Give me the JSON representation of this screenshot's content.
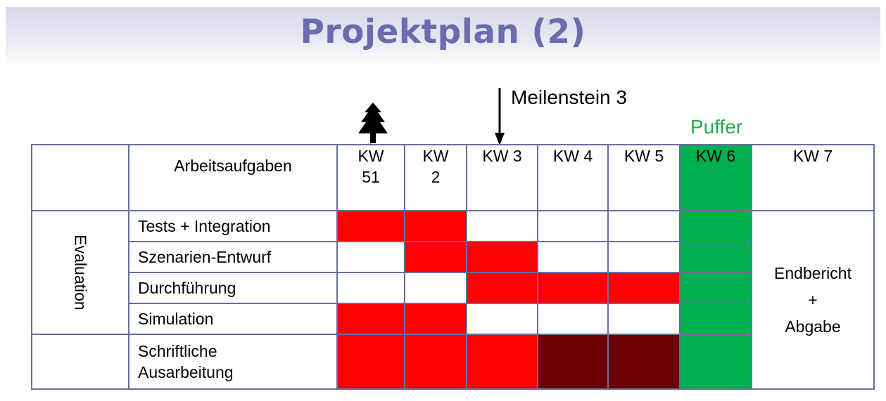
{
  "title": "Projektplan (2)",
  "milestone_label": "Meilenstein 3",
  "buffer_label": "Puffer",
  "icons": {
    "tree": "tree-icon",
    "arrow": "arrow-down-icon"
  },
  "colors": {
    "task_active": "#ff0000",
    "task_dark": "#6b0000",
    "buffer": "#00b050",
    "title": "#6b6bae",
    "grid": "#6a6e9e"
  },
  "table": {
    "task_header": "Arbeitsaufgaben",
    "weeks": [
      [
        "KW",
        "51"
      ],
      [
        "KW",
        "2"
      ],
      [
        "KW 3"
      ],
      [
        "KW 4"
      ],
      [
        "KW 5"
      ],
      [
        "KW 6"
      ],
      [
        "KW 7"
      ]
    ],
    "group_label": "Evaluation",
    "tasks": [
      {
        "name": [
          "Tests + Integration"
        ],
        "cells": [
          "red",
          "red",
          "",
          "",
          ""
        ]
      },
      {
        "name": [
          "Szenarien-Entwurf"
        ],
        "cells": [
          "",
          "red",
          "red",
          "",
          ""
        ]
      },
      {
        "name": [
          "Durchführung"
        ],
        "cells": [
          "",
          "",
          "red",
          "red",
          "red"
        ]
      },
      {
        "name": [
          "Simulation"
        ],
        "cells": [
          "red",
          "red",
          "",
          "",
          ""
        ]
      },
      {
        "name": [
          "Schriftliche",
          "Ausarbeitung"
        ],
        "cells": [
          "red",
          "red",
          "red",
          "dark",
          "dark"
        ]
      }
    ],
    "kw7_note": [
      "Endbericht",
      "+",
      "Abgabe"
    ]
  }
}
